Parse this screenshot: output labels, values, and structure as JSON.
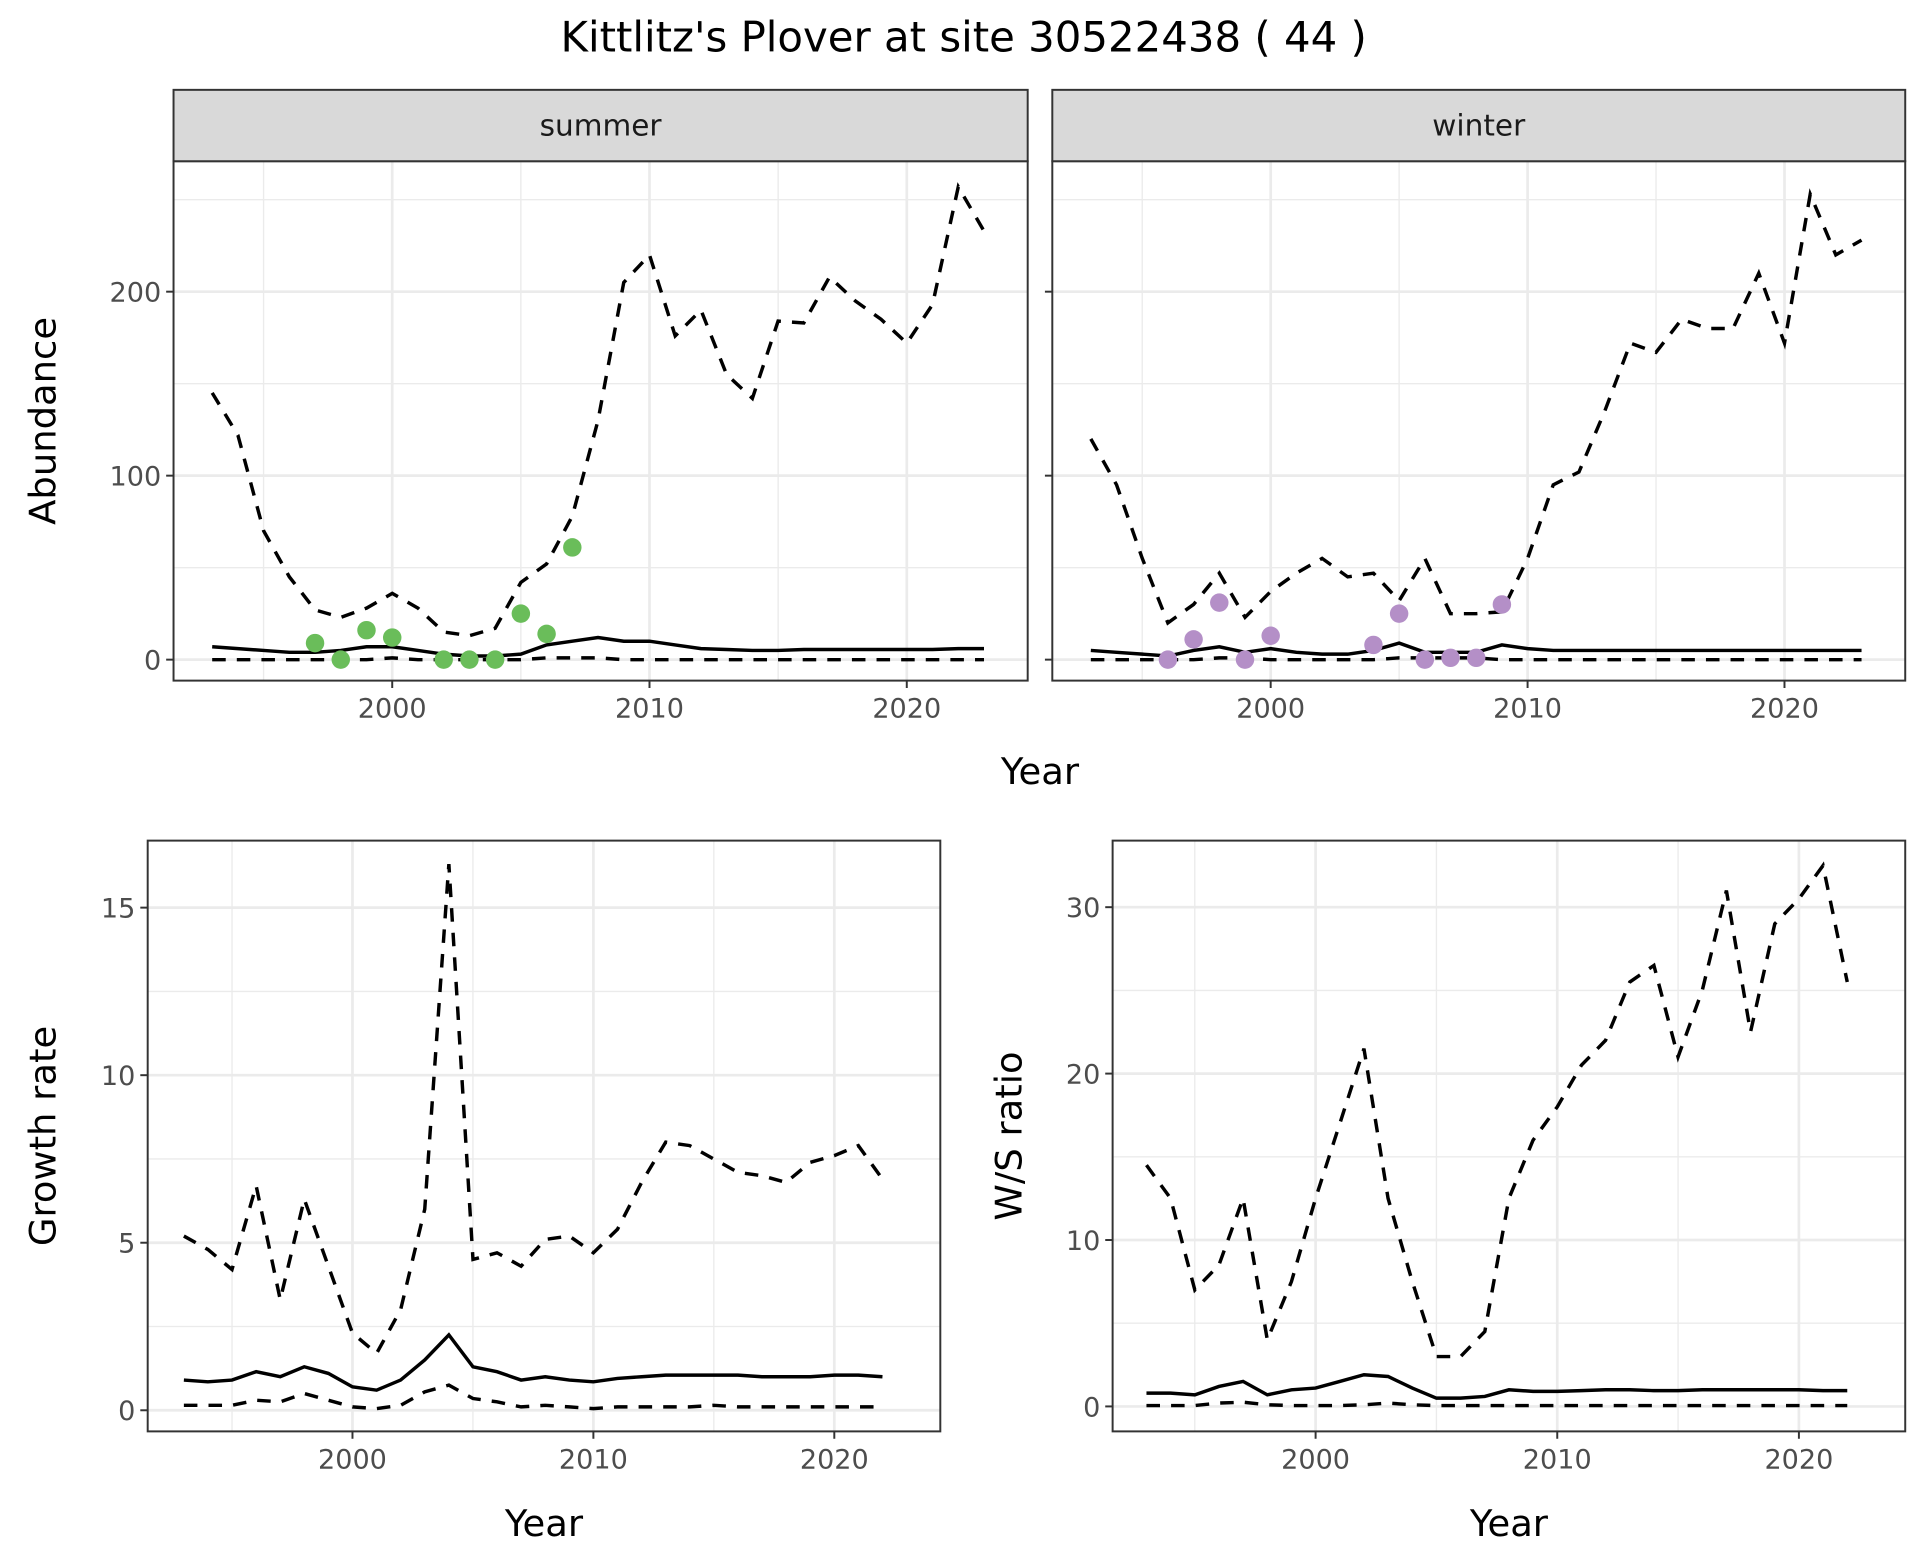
{
  "title": "Kittlitz's Plover at site 30522438 ( 44 )",
  "colors": {
    "summer_points": "#6abd5a",
    "winter_points": "#b48fc7",
    "grid": "#ebebeb",
    "strip": "#d9d9d9"
  },
  "chart_data": [
    {
      "id": "summer",
      "type": "line",
      "strip": "summer",
      "xlabel": "Year",
      "ylabel": "Abundance",
      "xlim": [
        1991.5,
        2024.7
      ],
      "ylim": [
        -11.4,
        270.9
      ],
      "xticks": [
        2000,
        2010,
        2020
      ],
      "yticks": [
        0,
        100,
        200
      ],
      "years": [
        1993,
        1994,
        1995,
        1996,
        1997,
        1998,
        1999,
        2000,
        2001,
        2002,
        2003,
        2004,
        2005,
        2006,
        2007,
        2008,
        2009,
        2010,
        2011,
        2012,
        2013,
        2014,
        2015,
        2016,
        2017,
        2018,
        2019,
        2020,
        2021,
        2022,
        2023
      ],
      "upper": [
        145,
        122,
        70,
        45,
        27,
        23,
        28,
        36,
        28,
        15,
        13,
        17,
        42,
        52,
        78,
        130,
        205,
        220,
        176,
        190,
        155,
        142,
        184,
        183,
        208,
        195,
        185,
        172,
        193,
        257,
        233
      ],
      "mean": [
        7,
        6,
        5,
        4,
        4,
        5,
        7,
        7,
        5,
        3,
        2,
        2,
        3,
        8,
        10,
        12,
        10,
        10,
        8,
        6,
        5.5,
        5,
        5,
        5.5,
        5.5,
        5.5,
        5.5,
        5.5,
        5.5,
        6,
        6
      ],
      "lower": [
        0,
        0,
        0,
        0,
        0,
        0,
        0,
        1,
        0,
        0,
        0,
        0,
        0,
        1,
        1,
        1,
        0,
        0,
        0,
        0,
        0,
        0,
        0,
        0,
        0,
        0,
        0,
        0,
        0,
        0,
        0
      ],
      "points": {
        "x": [
          1997,
          1998,
          1999,
          2000,
          2002,
          2003,
          2004,
          2005,
          2006,
          2007
        ],
        "y": [
          9,
          0,
          16,
          12,
          0,
          0,
          0,
          25,
          14,
          61
        ],
        "color": "#6abd5a"
      }
    },
    {
      "id": "winter",
      "type": "line",
      "strip": "winter",
      "xlabel": "Year",
      "ylabel": "Abundance",
      "xlim": [
        1991.5,
        2024.7
      ],
      "ylim": [
        -11.4,
        270.9
      ],
      "xticks": [
        2000,
        2010,
        2020
      ],
      "yticks": [
        0,
        100,
        200
      ],
      "years": [
        1993,
        1994,
        1995,
        1996,
        1997,
        1998,
        1999,
        2000,
        2001,
        2002,
        2003,
        2004,
        2005,
        2006,
        2007,
        2008,
        2009,
        2010,
        2011,
        2012,
        2013,
        2014,
        2015,
        2016,
        2017,
        2018,
        2019,
        2020,
        2021,
        2022,
        2023
      ],
      "upper": [
        120,
        95,
        55,
        20,
        30,
        47,
        23,
        37,
        47,
        55,
        45,
        47,
        32,
        55,
        25,
        25,
        26,
        55,
        95,
        102,
        135,
        172,
        167,
        185,
        180,
        180,
        210,
        172,
        253,
        220,
        228
      ],
      "mean": [
        5,
        4,
        3,
        2,
        5,
        7,
        4,
        6,
        4,
        3,
        3,
        5,
        9,
        4,
        4,
        4,
        8,
        6,
        5,
        5,
        5,
        5,
        5,
        5,
        5,
        5,
        5,
        5,
        5,
        5,
        5
      ],
      "lower": [
        0,
        0,
        0,
        0,
        0,
        1,
        1,
        0,
        0,
        0,
        0,
        0,
        1,
        1,
        1,
        1,
        0,
        0,
        0,
        0,
        0,
        0,
        0,
        0,
        0,
        0,
        0,
        0,
        0,
        0,
        0
      ],
      "points": {
        "x": [
          1996,
          1997,
          1998,
          1999,
          2000,
          2004,
          2005,
          2006,
          2007,
          2008,
          2009
        ],
        "y": [
          0,
          11,
          31,
          0,
          13,
          8,
          25,
          0,
          1,
          1,
          30
        ],
        "color": "#b48fc7"
      }
    },
    {
      "id": "growth",
      "type": "line",
      "xlabel": "Year",
      "ylabel": "Growth rate",
      "xlim": [
        1991.5,
        2024.4
      ],
      "ylim": [
        -0.63,
        17.0
      ],
      "xticks": [
        2000,
        2010,
        2020
      ],
      "yticks": [
        0,
        5,
        10,
        15
      ],
      "years": [
        1993,
        1994,
        1995,
        1996,
        1997,
        1998,
        1999,
        2000,
        2001,
        2002,
        2003,
        2004,
        2005,
        2006,
        2007,
        2008,
        2009,
        2010,
        2011,
        2012,
        2013,
        2014,
        2015,
        2016,
        2017,
        2018,
        2019,
        2020,
        2021,
        2022
      ],
      "upper": [
        5.2,
        4.8,
        4.2,
        6.7,
        3.3,
        6.3,
        4.3,
        2.3,
        1.7,
        3.0,
        6.0,
        16.3,
        4.5,
        4.7,
        4.3,
        5.1,
        5.2,
        4.7,
        5.4,
        6.8,
        8.0,
        7.9,
        7.5,
        7.1,
        7.0,
        6.8,
        7.4,
        7.6,
        7.9,
        6.9
      ],
      "mean": [
        0.9,
        0.85,
        0.9,
        1.15,
        1.0,
        1.3,
        1.1,
        0.7,
        0.6,
        0.9,
        1.5,
        2.25,
        1.3,
        1.15,
        0.9,
        1.0,
        0.9,
        0.85,
        0.95,
        1.0,
        1.05,
        1.05,
        1.05,
        1.05,
        1.0,
        1.0,
        1.0,
        1.05,
        1.05,
        1.0
      ],
      "lower": [
        0.15,
        0.15,
        0.15,
        0.3,
        0.25,
        0.5,
        0.3,
        0.1,
        0.05,
        0.15,
        0.55,
        0.75,
        0.35,
        0.25,
        0.1,
        0.15,
        0.1,
        0.05,
        0.1,
        0.1,
        0.1,
        0.1,
        0.15,
        0.1,
        0.1,
        0.1,
        0.1,
        0.1,
        0.1,
        0.1
      ]
    },
    {
      "id": "ratio",
      "type": "line",
      "xlabel": "Year",
      "ylabel": "W/S ratio",
      "xlim": [
        1991.6,
        2024.4
      ],
      "ylim": [
        -1.5,
        34.0
      ],
      "xticks": [
        2000,
        2010,
        2020
      ],
      "yticks": [
        0,
        10,
        20,
        30
      ],
      "years": [
        1993,
        1994,
        1995,
        1996,
        1997,
        1998,
        1999,
        2000,
        2001,
        2002,
        2003,
        2004,
        2005,
        2006,
        2007,
        2008,
        2009,
        2010,
        2011,
        2012,
        2013,
        2014,
        2015,
        2016,
        2017,
        2018,
        2019,
        2020,
        2021,
        2022
      ],
      "upper": [
        14.5,
        12.5,
        7,
        8.5,
        12.5,
        4,
        7.5,
        12.5,
        17,
        21.5,
        12.5,
        7.5,
        3,
        3,
        4.5,
        12.5,
        16,
        18,
        20.5,
        22,
        25.5,
        26.5,
        21,
        25,
        31,
        22.5,
        29,
        30.5,
        32.5,
        25.5
      ],
      "mean": [
        0.8,
        0.8,
        0.7,
        1.2,
        1.5,
        0.7,
        1.0,
        1.1,
        1.5,
        1.9,
        1.8,
        1.1,
        0.5,
        0.5,
        0.6,
        1.0,
        0.9,
        0.9,
        0.95,
        1.0,
        1.0,
        0.95,
        0.95,
        1.0,
        1.0,
        1.0,
        1.0,
        1.0,
        0.95,
        0.95
      ],
      "lower": [
        0.05,
        0.05,
        0.05,
        0.2,
        0.25,
        0.1,
        0.05,
        0.05,
        0.05,
        0.1,
        0.2,
        0.1,
        0.05,
        0.05,
        0.05,
        0.05,
        0.05,
        0.05,
        0.05,
        0.05,
        0.05,
        0.05,
        0.05,
        0.05,
        0.05,
        0.05,
        0.05,
        0.05,
        0.05,
        0.05
      ]
    }
  ]
}
